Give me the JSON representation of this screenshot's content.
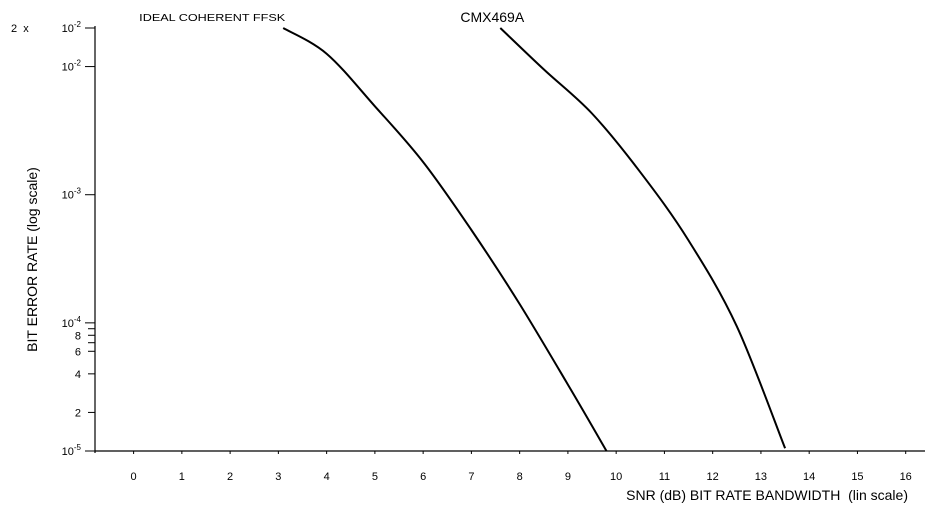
{
  "chart_data": {
    "type": "line",
    "title": "",
    "xlabel": "SNR (dB) BIT RATE BANDWIDTH  (lin scale)",
    "ylabel": "BIT ERROR RATE (log scale)",
    "x_scale": "linear",
    "y_scale": "log",
    "xlim": [
      -0.8,
      16.4
    ],
    "ylim": [
      1e-05,
      0.02
    ],
    "grid": false,
    "x_ticks": [
      0,
      1,
      2,
      3,
      4,
      5,
      6,
      7,
      8,
      9,
      10,
      11,
      12,
      13,
      14,
      15,
      16
    ],
    "y_ticks": [
      {
        "value": 0.02,
        "label_prefix": "2  x",
        "label": "10-2",
        "base": "10",
        "exp": "-2",
        "major": true
      },
      {
        "value": 0.01,
        "label_prefix": "",
        "label": "10-2",
        "base": "10",
        "exp": "-2",
        "major": true
      },
      {
        "value": 0.001,
        "label_prefix": "",
        "label": "10-3",
        "base": "10",
        "exp": "-3",
        "major": true
      },
      {
        "value": 0.0001,
        "label_prefix": "",
        "label": "10-4",
        "base": "10",
        "exp": "-4",
        "major": true
      },
      {
        "value": 9e-05,
        "label_prefix": "",
        "label": "",
        "base": "",
        "exp": "",
        "major": false
      },
      {
        "value": 8e-05,
        "label_prefix": "",
        "label": "8",
        "base": "",
        "exp": "",
        "major": false
      },
      {
        "value": 7e-05,
        "label_prefix": "",
        "label": "",
        "base": "",
        "exp": "",
        "major": false
      },
      {
        "value": 6e-05,
        "label_prefix": "",
        "label": "6",
        "base": "",
        "exp": "",
        "major": false
      },
      {
        "value": 4e-05,
        "label_prefix": "",
        "label": "4",
        "base": "",
        "exp": "",
        "major": false
      },
      {
        "value": 2e-05,
        "label_prefix": "",
        "label": "2",
        "base": "",
        "exp": "",
        "major": false
      },
      {
        "value": 1e-05,
        "label_prefix": "",
        "label": "10-5",
        "base": "10",
        "exp": "-5",
        "major": true
      }
    ],
    "series": [
      {
        "name": "IDEAL COHERENT FFSK",
        "color": "#000000",
        "x": [
          3.1,
          4.0,
          5.0,
          6.0,
          7.0,
          8.0,
          9.0,
          9.8
        ],
        "y": [
          0.02,
          0.0126,
          0.0049,
          0.0018,
          0.00053,
          0.00014,
          3.3e-05,
          1e-05
        ]
      },
      {
        "name": "CMX469A",
        "color": "#000000",
        "x": [
          7.6,
          8.5,
          9.5,
          10.5,
          11.5,
          12.5,
          13.5
        ],
        "y": [
          0.02,
          0.0095,
          0.0043,
          0.0015,
          0.00044,
          9.4e-05,
          1.05e-05
        ]
      }
    ]
  }
}
